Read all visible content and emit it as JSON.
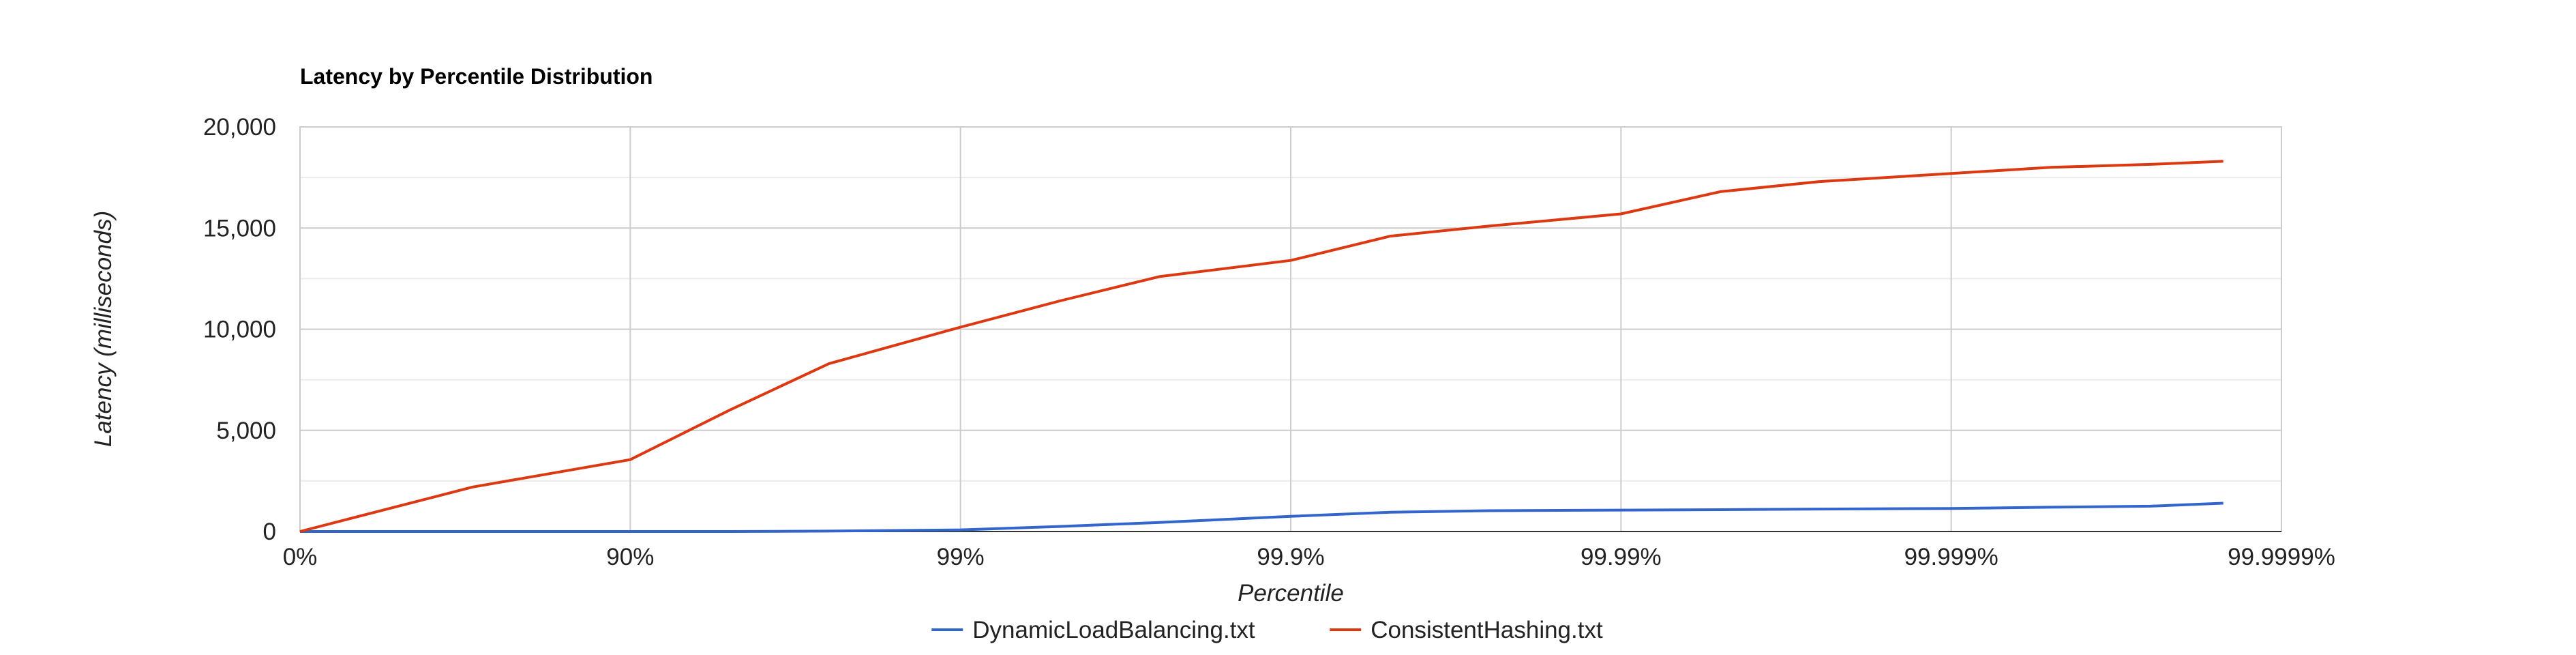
{
  "chart_data": {
    "type": "line",
    "title": "Latency by Percentile Distribution",
    "xlabel": "Percentile",
    "ylabel": "Latency (milliseconds)",
    "x_scale": "inverse-log percentile (each tick = one more nine)",
    "x_ticks": [
      "0%",
      "90%",
      "99%",
      "99.9%",
      "99.99%",
      "99.999%",
      "99.9999%"
    ],
    "y_ticks": [
      "0",
      "5,000",
      "10,000",
      "15,000",
      "20,000"
    ],
    "ylim": [
      0,
      20000
    ],
    "grid": true,
    "legend_position": "bottom",
    "x": [
      "0%",
      "70%",
      "90%",
      "95%",
      "97.5%",
      "99%",
      "99.5%",
      "99.75%",
      "99.9%",
      "99.95%",
      "99.975%",
      "99.99%",
      "99.995%",
      "99.9975%",
      "99.999%",
      "99.9995%",
      "99.99975%",
      "99.99985%"
    ],
    "series": [
      {
        "name": "DynamicLoadBalancing.txt",
        "color": "#3366cc",
        "values": [
          0,
          0,
          0,
          0,
          20,
          80,
          250,
          450,
          750,
          950,
          1030,
          1060,
          1080,
          1110,
          1140,
          1200,
          1250,
          1400
        ]
      },
      {
        "name": "ConsistentHashing.txt",
        "color": "#dc3912",
        "values": [
          0,
          2200,
          3550,
          6000,
          8300,
          10100,
          11400,
          12600,
          13400,
          14600,
          15100,
          15700,
          16800,
          17300,
          17700,
          18000,
          18150,
          18300
        ]
      }
    ]
  }
}
